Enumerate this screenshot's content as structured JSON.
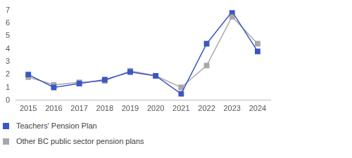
{
  "chart_data": {
    "type": "line",
    "categories": [
      "2015",
      "2016",
      "2017",
      "2018",
      "2019",
      "2020",
      "2021",
      "2022",
      "2023",
      "2024"
    ],
    "series": [
      {
        "name": "Teachers' Pension Plan",
        "color": "#3b56c6",
        "marker": "square",
        "line_style": "solid",
        "values": [
          2.0,
          1.0,
          1.3,
          1.6,
          2.2,
          1.9,
          0.5,
          4.4,
          6.9,
          3.8
        ]
      },
      {
        "name": "Other BC public sector pension plans",
        "color": "#a8a8a8",
        "marker": "square",
        "line_style": "solid",
        "values": [
          1.8,
          1.2,
          1.4,
          1.5,
          2.3,
          1.9,
          1.0,
          2.7,
          6.5,
          4.4
        ]
      }
    ],
    "ylim": [
      0,
      7
    ],
    "yticks": [
      0,
      1,
      2,
      3,
      4,
      5,
      6,
      7
    ],
    "grid": false,
    "legend": "bottom-left"
  }
}
